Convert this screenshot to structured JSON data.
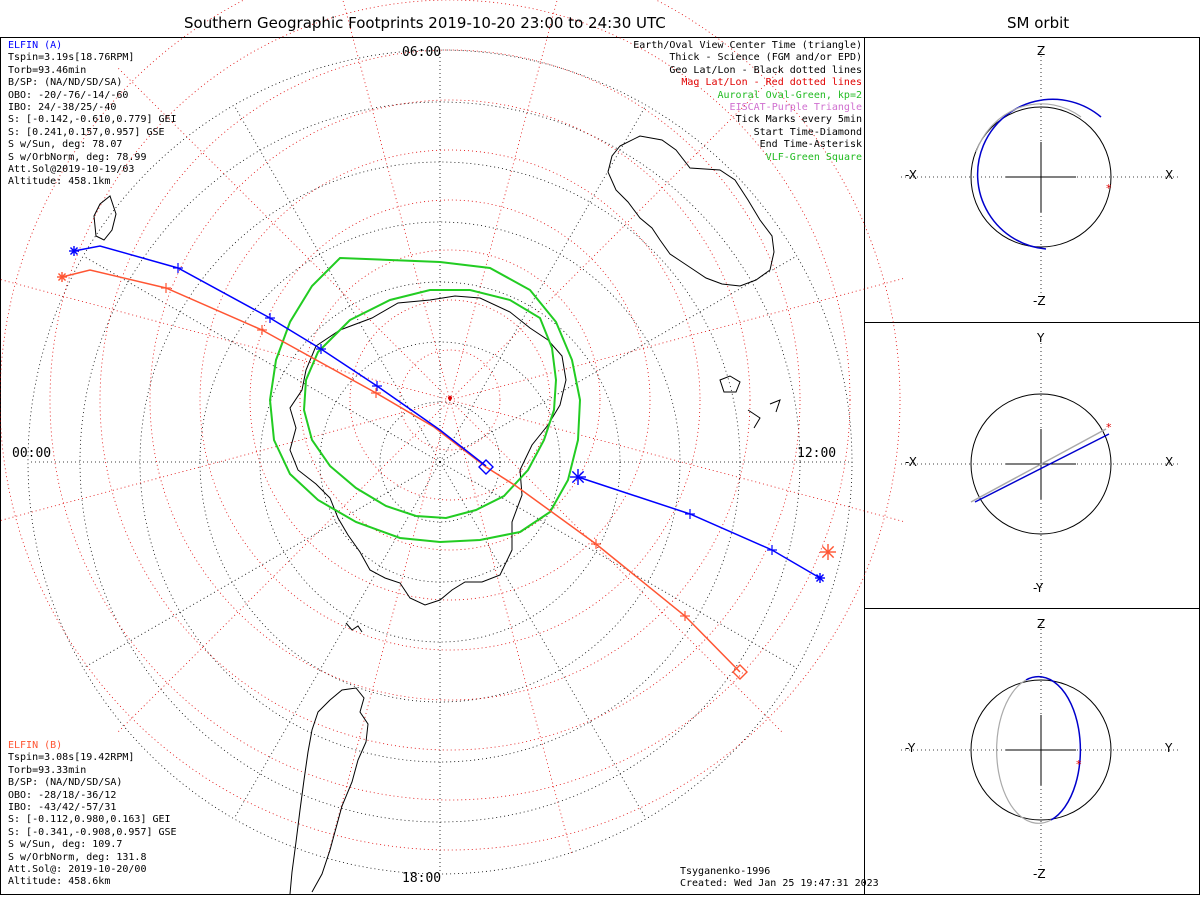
{
  "main_title": "Southern Geographic Footprints 2019-10-20 23:00 to 24:30 UTC",
  "sm_title": "SM orbit",
  "hour_labels": {
    "top": "06:00",
    "left": "00:00",
    "right": "12:00",
    "bottom": "18:00"
  },
  "legend": [
    {
      "text": "Earth/Oval View Center Time (triangle)",
      "color": "#000000"
    },
    {
      "text": "Thick - Science (FGM and/or EPD)",
      "color": "#000000"
    },
    {
      "text": "Geo Lat/Lon - Black dotted lines",
      "color": "#000000"
    },
    {
      "text": "Mag Lat/Lon - Red dotted lines",
      "color": "#e00000"
    },
    {
      "text": "Auroral Oval-Green, kp=2",
      "color": "#22bb22"
    },
    {
      "text": "EISCAT-Purple Triangle",
      "color": "#d070d0"
    },
    {
      "text": "Tick Marks every 5min",
      "color": "#000000"
    },
    {
      "text": "Start Time-Diamond",
      "color": "#000000"
    },
    {
      "text": "End Time-Asterisk",
      "color": "#000000"
    },
    {
      "text": "VLF-Green Square",
      "color": "#22bb22"
    }
  ],
  "elfin_a": {
    "name": "ELFIN (A)",
    "color": "#0000ff",
    "lines": [
      "Tspin=3.19s[18.76RPM]",
      "Torb=93.46min",
      "B/SP: (NA/ND/SD/SA)",
      "OBO: -20/-76/-14/-60",
      "IBO: 24/-38/25/-40",
      "S: [-0.142,-0.610,0.779] GEI",
      "S: [0.241,0.157,0.957] GSE",
      "S w/Sun, deg: 78.07",
      "S w/OrbNorm, deg: 78.99",
      "Att.Sol@2019-10-19/03",
      "Altitude: 458.1km"
    ]
  },
  "elfin_b": {
    "name": "ELFIN (B)",
    "color": "#ff5533",
    "lines": [
      "Tspin=3.08s[19.42RPM]",
      "Torb=93.33min",
      "B/SP: (NA/ND/SD/SA)",
      "OBO: -28/18/-36/12",
      "IBO: -43/42/-57/31",
      "S: [-0.112,0.980,0.163] GEI",
      "S: [-0.341,-0.908,0.957] GSE",
      "S w/Sun, deg: 109.7",
      "S w/OrbNorm, deg: 131.8",
      "Att.Sol@: 2019-10-20/00",
      "Altitude: 458.6km"
    ]
  },
  "credits": {
    "model": "Tsyganenko-1996",
    "created": "Created: Wed Jan 25 19:47:31 2023"
  },
  "sm_panels": [
    {
      "top": "Z",
      "bottom": "-Z",
      "left": "-X",
      "right": "X"
    },
    {
      "top": "Y",
      "bottom": "-Y",
      "left": "-X",
      "right": "X"
    },
    {
      "top": "Z",
      "bottom": "-Z",
      "left": "-Y",
      "right": "Y"
    }
  ],
  "chart_data": {
    "type": "scatter",
    "title": "Southern Geographic Footprints 2019-10-20 23:00 to 24:30 UTC",
    "projection": "south polar",
    "series": [
      {
        "name": "ELFIN (A)",
        "color": "#0000ff",
        "track": [
          [
            74,
            251
          ],
          [
            100,
            246
          ],
          [
            178,
            268
          ],
          [
            270,
            318
          ],
          [
            321,
            349
          ],
          [
            377,
            386
          ],
          [
            440,
            430
          ],
          [
            486,
            466
          ]
        ],
        "track2": [
          [
            578,
            477
          ],
          [
            690,
            514
          ],
          [
            772,
            550
          ],
          [
            820,
            578
          ]
        ],
        "ticks": [
          [
            178,
            268
          ],
          [
            270,
            318
          ],
          [
            321,
            349
          ],
          [
            377,
            386
          ],
          [
            690,
            514
          ],
          [
            772,
            550
          ]
        ],
        "start": [
          486,
          467
        ],
        "end": [
          820,
          578
        ],
        "asterisk": [
          578,
          477
        ]
      },
      {
        "name": "ELFIN (B)",
        "color": "#ff5533",
        "track": [
          [
            62,
            277
          ],
          [
            90,
            270
          ],
          [
            166,
            288
          ],
          [
            262,
            330
          ],
          [
            376,
            393
          ],
          [
            434,
            427
          ],
          [
            486,
            467
          ],
          [
            516,
            486
          ],
          [
            596,
            544
          ],
          [
            685,
            616
          ],
          [
            740,
            672
          ]
        ],
        "ticks": [
          [
            166,
            288
          ],
          [
            262,
            330
          ],
          [
            376,
            393
          ],
          [
            596,
            544
          ],
          [
            685,
            616
          ]
        ],
        "start": [
          740,
          672
        ],
        "end": [
          828,
          552
        ],
        "asterisk2": [
          62,
          277
        ]
      }
    ],
    "auroral_oval_kp": 2
  }
}
